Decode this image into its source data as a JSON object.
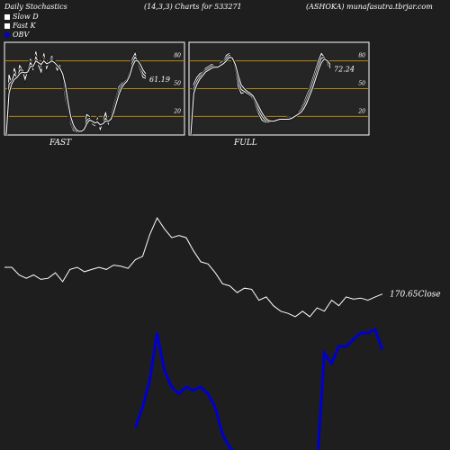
{
  "header": {
    "left": "Daily Stochastics",
    "center": "(14,3,3) Charts for 533271",
    "right": "(ASHOKA) munafasutra.tbrjar.com"
  },
  "legend": [
    {
      "label": "Slow  D",
      "color": "#ffffff"
    },
    {
      "label": "Fast K",
      "color": "#ffffff"
    },
    {
      "label": "OBV",
      "color": "#0000cc"
    }
  ],
  "chart_data": [
    {
      "type": "line",
      "panel": "FAST",
      "ylim": [
        0,
        100
      ],
      "ticks": [
        "80",
        "50",
        "20"
      ],
      "levels": [
        80,
        50,
        20
      ],
      "last_value_label": "61.19",
      "series": [
        {
          "values": [
            0,
            65,
            55,
            72,
            62,
            75,
            70,
            60,
            70,
            82,
            70,
            90,
            75,
            68,
            88,
            72,
            80,
            85,
            78,
            70,
            75,
            60,
            40,
            25,
            12,
            5,
            3,
            2,
            4,
            8,
            22,
            20,
            12,
            10,
            18,
            6,
            14,
            24,
            12,
            22,
            32,
            42,
            52,
            56,
            58,
            62,
            70,
            82,
            88,
            78,
            70,
            62,
            61.19
          ]
        },
        {
          "values": [
            0,
            55,
            58,
            66,
            62,
            70,
            70,
            66,
            70,
            78,
            74,
            84,
            78,
            74,
            82,
            76,
            79,
            82,
            78,
            74,
            72,
            64,
            48,
            30,
            16,
            8,
            4,
            3,
            4,
            7,
            16,
            18,
            14,
            12,
            15,
            10,
            13,
            18,
            15,
            19,
            28,
            38,
            48,
            54,
            57,
            60,
            67,
            78,
            84,
            80,
            74,
            66,
            63
          ]
        },
        {
          "values": [
            0,
            45,
            55,
            60,
            62,
            66,
            68,
            67,
            68,
            74,
            74,
            80,
            78,
            76,
            80,
            77,
            78,
            80,
            78,
            75,
            72,
            66,
            54,
            36,
            20,
            11,
            6,
            4,
            4,
            6,
            12,
            16,
            15,
            13,
            14,
            11,
            12,
            15,
            15,
            17,
            24,
            34,
            44,
            51,
            55,
            58,
            64,
            74,
            80,
            80,
            76,
            70,
            66
          ]
        }
      ]
    },
    {
      "type": "line",
      "panel": "FULL",
      "ylim": [
        0,
        100
      ],
      "ticks": [
        "80",
        "50",
        "20"
      ],
      "levels": [
        80,
        50,
        20
      ],
      "last_value_label": "72.24",
      "series": [
        {
          "values": [
            0,
            55,
            62,
            66,
            68,
            72,
            74,
            76,
            75,
            74,
            78,
            80,
            86,
            88,
            82,
            68,
            52,
            45,
            46,
            44,
            42,
            38,
            30,
            22,
            16,
            14,
            13,
            14,
            16,
            18,
            18,
            17,
            18,
            19,
            20,
            22,
            24,
            28,
            34,
            42,
            50,
            60,
            70,
            80,
            88,
            84,
            76,
            72.24
          ]
        },
        {
          "values": [
            0,
            50,
            58,
            63,
            66,
            70,
            72,
            74,
            74,
            74,
            76,
            78,
            83,
            86,
            83,
            72,
            58,
            49,
            47,
            45,
            43,
            40,
            33,
            26,
            20,
            16,
            14,
            14,
            15,
            17,
            17,
            17,
            17,
            18,
            19,
            21,
            23,
            26,
            31,
            38,
            46,
            55,
            65,
            75,
            83,
            84,
            78,
            74
          ]
        },
        {
          "values": [
            0,
            45,
            54,
            60,
            64,
            68,
            70,
            72,
            73,
            73,
            75,
            77,
            80,
            84,
            83,
            76,
            64,
            54,
            50,
            47,
            45,
            42,
            36,
            30,
            24,
            19,
            16,
            15,
            15,
            16,
            17,
            17,
            17,
            17,
            18,
            20,
            22,
            24,
            28,
            34,
            42,
            50,
            60,
            70,
            78,
            82,
            80,
            76
          ]
        }
      ]
    },
    {
      "type": "line",
      "panel": "PRICE",
      "series": [
        {
          "name": "Close",
          "values": [
            195,
            195,
            188,
            185,
            188,
            184,
            185,
            190,
            182,
            193,
            195,
            191,
            193,
            195,
            193,
            197,
            196,
            194,
            202,
            205,
            225,
            240,
            230,
            222,
            224,
            222,
            210,
            200,
            198,
            190,
            180,
            178,
            172,
            176,
            175,
            165,
            168,
            160,
            155,
            153,
            150,
            155,
            150,
            158,
            155,
            165,
            160,
            168,
            166,
            167,
            165,
            168,
            170.65
          ]
        }
      ],
      "last_value_label": "170.65",
      "value_suffix": "Close"
    },
    {
      "type": "line",
      "panel": "OBV",
      "series": [
        {
          "name": "OBV",
          "values": [
            null,
            null,
            null,
            null,
            null,
            null,
            null,
            null,
            null,
            null,
            null,
            null,
            null,
            null,
            null,
            null,
            null,
            null,
            -20,
            10,
            50,
            120,
            65,
            40,
            30,
            40,
            35,
            40,
            30,
            10,
            -30,
            -50,
            -60,
            -80,
            -60,
            -120,
            -100,
            -120,
            -80,
            -100,
            -180,
            -300,
            -140,
            -100,
            90,
            75,
            100,
            100,
            110,
            120,
            120,
            125,
            95
          ]
        }
      ]
    }
  ]
}
